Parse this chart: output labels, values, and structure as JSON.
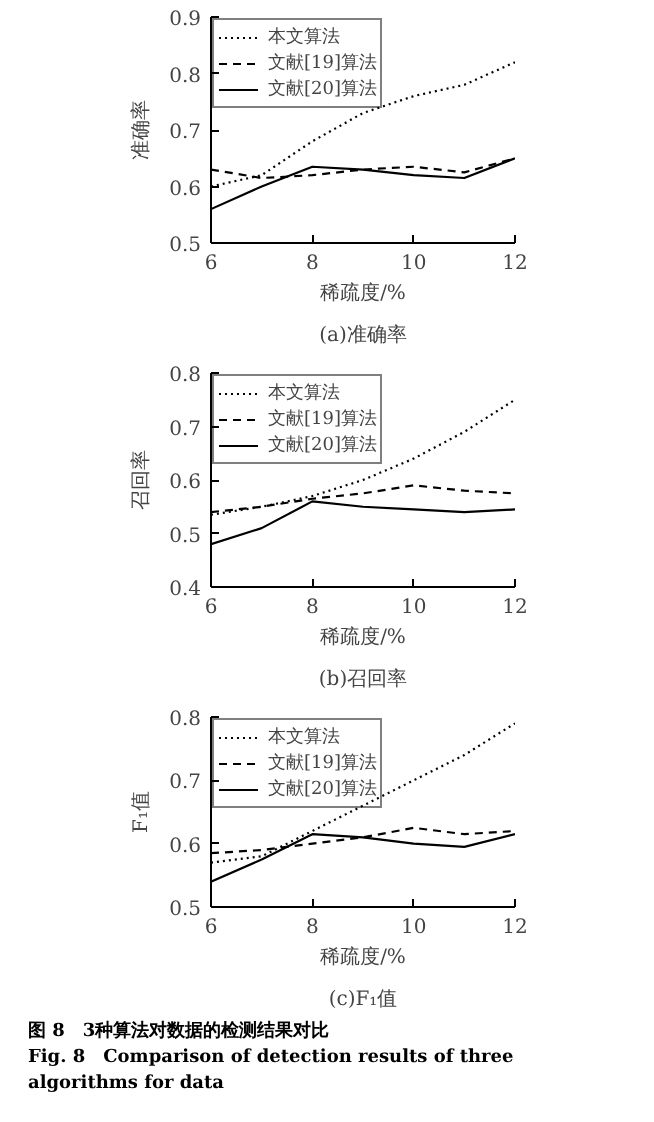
{
  "chart_data": [
    {
      "type": "line",
      "subtitle": "(a)准确率",
      "xlabel": "稀疏度/%",
      "ylabel": "准确率",
      "x": [
        6,
        7,
        8,
        9,
        10,
        11,
        12
      ],
      "xlim": [
        6,
        12
      ],
      "xticks": [
        6,
        8,
        10,
        12
      ],
      "ylim": [
        0.5,
        0.9
      ],
      "yticks": [
        0.5,
        0.6,
        0.7,
        0.8,
        0.9
      ],
      "legend": "top left",
      "grid": false,
      "series": [
        {
          "name": "本文算法",
          "color": "#000000",
          "line_style": "dotted",
          "values": [
            0.6,
            0.62,
            0.68,
            0.73,
            0.76,
            0.78,
            0.82
          ]
        },
        {
          "name": "文献[19]算法",
          "color": "#000000",
          "line_style": "dashed",
          "values": [
            0.63,
            0.615,
            0.62,
            0.63,
            0.635,
            0.625,
            0.65
          ]
        },
        {
          "name": "文献[20]算法",
          "color": "#000000",
          "line_style": "solid",
          "values": [
            0.56,
            0.6,
            0.635,
            0.63,
            0.62,
            0.615,
            0.65
          ]
        }
      ]
    },
    {
      "type": "line",
      "subtitle": "(b)召回率",
      "xlabel": "稀疏度/%",
      "ylabel": "召回率",
      "x": [
        6,
        7,
        8,
        9,
        10,
        11,
        12
      ],
      "xlim": [
        6,
        12
      ],
      "xticks": [
        6,
        8,
        10,
        12
      ],
      "ylim": [
        0.4,
        0.8
      ],
      "yticks": [
        0.4,
        0.5,
        0.6,
        0.7,
        0.8
      ],
      "legend": "top left",
      "grid": false,
      "series": [
        {
          "name": "本文算法",
          "color": "#000000",
          "line_style": "dotted",
          "values": [
            0.535,
            0.55,
            0.57,
            0.6,
            0.64,
            0.69,
            0.75
          ]
        },
        {
          "name": "文献[19]算法",
          "color": "#000000",
          "line_style": "dashed",
          "values": [
            0.54,
            0.55,
            0.565,
            0.575,
            0.59,
            0.58,
            0.575
          ]
        },
        {
          "name": "文献[20]算法",
          "color": "#000000",
          "line_style": "solid",
          "values": [
            0.48,
            0.51,
            0.56,
            0.55,
            0.545,
            0.54,
            0.545
          ]
        }
      ]
    },
    {
      "type": "line",
      "subtitle": "(c)F₁值",
      "xlabel": "稀疏度/%",
      "ylabel": "F₁值",
      "x": [
        6,
        7,
        8,
        9,
        10,
        11,
        12
      ],
      "xlim": [
        6,
        12
      ],
      "xticks": [
        6,
        8,
        10,
        12
      ],
      "ylim": [
        0.5,
        0.8
      ],
      "yticks": [
        0.5,
        0.6,
        0.7,
        0.8
      ],
      "legend": "top left",
      "grid": false,
      "annotations": [
        "图 8　3种算法对数据的检测结果对比",
        "Fig. 8　Comparison of detection results of three algorithms for data"
      ],
      "series": [
        {
          "name": "本文算法",
          "color": "#000000",
          "line_style": "dotted",
          "values": [
            0.57,
            0.58,
            0.62,
            0.66,
            0.7,
            0.74,
            0.79
          ]
        },
        {
          "name": "文献[19]算法",
          "color": "#000000",
          "line_style": "dashed",
          "values": [
            0.585,
            0.59,
            0.6,
            0.61,
            0.625,
            0.615,
            0.62
          ]
        },
        {
          "name": "文献[20]算法",
          "color": "#000000",
          "line_style": "solid",
          "values": [
            0.54,
            0.575,
            0.615,
            0.61,
            0.6,
            0.595,
            0.615
          ]
        }
      ]
    }
  ]
}
